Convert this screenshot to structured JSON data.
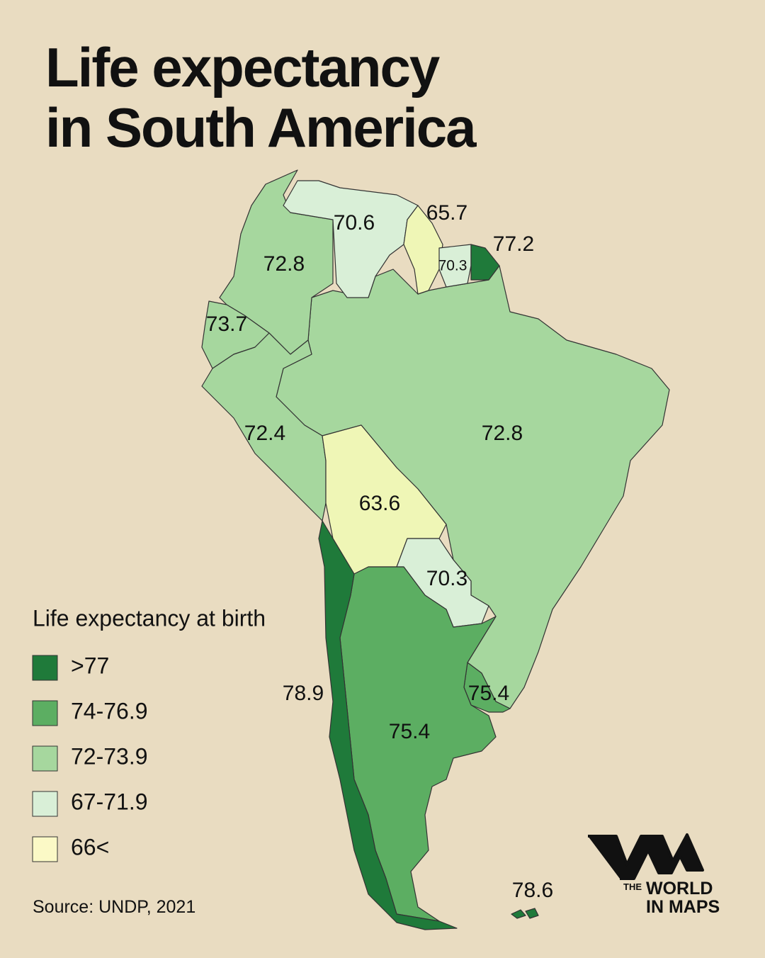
{
  "title": [
    "Life expectancy",
    "in South America"
  ],
  "regions": [
    {
      "value": 72.8,
      "color": "#a6d79e"
    },
    {
      "value": 70.6,
      "color": "#d9efd7"
    },
    {
      "value": 65.7,
      "color": "#eff6b6"
    },
    {
      "value": 70.3,
      "color": "#d9efd7"
    },
    {
      "value": 77.2,
      "color": "#1f7a3a"
    },
    {
      "value": 73.7,
      "color": "#a6d79e"
    },
    {
      "value": 72.4,
      "color": "#a6d79e"
    },
    {
      "value": 72.8,
      "color": "#a6d79e"
    },
    {
      "value": 63.6,
      "color": "#eff6b6"
    },
    {
      "value": 70.3,
      "color": "#d9efd7"
    },
    {
      "value": 75.4,
      "color": "#5cae62"
    },
    {
      "value": 75.4,
      "color": "#5cae62"
    },
    {
      "value": 78.9,
      "color": "#1f7a3a"
    },
    {
      "value": 78.6,
      "color": "#1f7a3a"
    }
  ],
  "legend": {
    "title": "Life expectancy at birth",
    "items": [
      {
        "label": ">77",
        "color": "#1f7a3a"
      },
      {
        "label": "74-76.9",
        "color": "#5cae62"
      },
      {
        "label": "72-73.9",
        "color": "#a6d79e"
      },
      {
        "label": "67-71.9",
        "color": "#d9efd7"
      },
      {
        "label": "66<",
        "color": "#fbf9c6"
      }
    ]
  },
  "source": "Source: UNDP, 2021",
  "logo": {
    "small": "THE",
    "line1": "WORLD",
    "line2": "IN MAPS"
  }
}
